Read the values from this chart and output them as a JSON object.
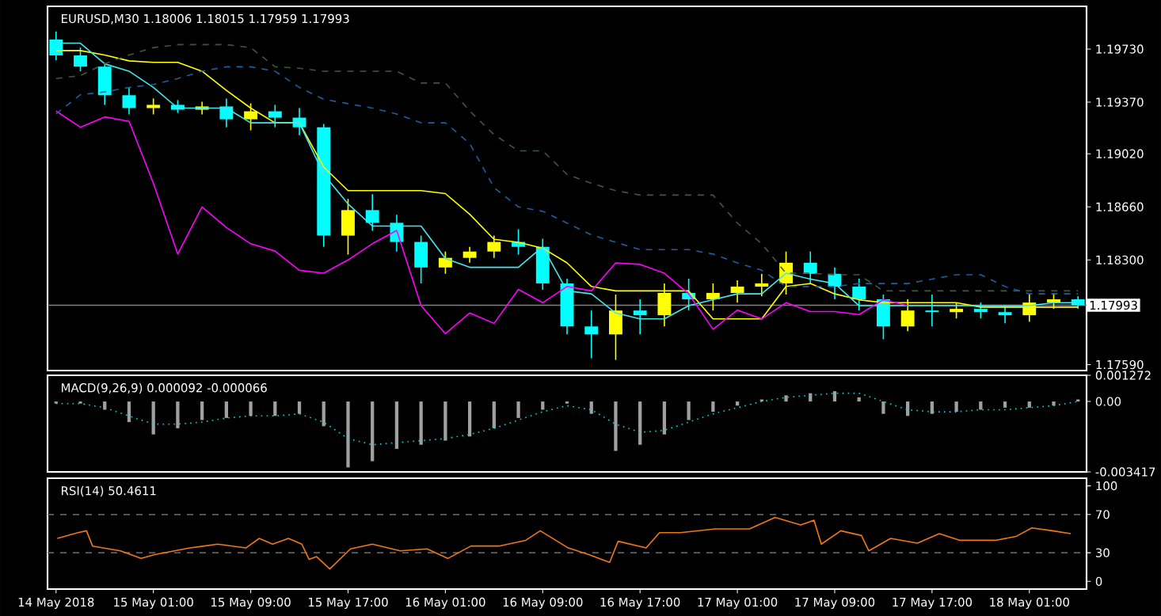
{
  "chart_data": [
    {
      "type": "candlestick",
      "title": "EURUSD,M30 1.18006 1.18015 1.17959 1.17993",
      "x": [
        "2018-05-14T17:00",
        "2018-05-14T19:00",
        "2018-05-14T21:00",
        "2018-05-14T23:00",
        "2018-05-15T01:00",
        "2018-05-15T03:00",
        "2018-05-15T05:00",
        "2018-05-15T07:00",
        "2018-05-15T09:00",
        "2018-05-15T11:00",
        "2018-05-15T13:00",
        "2018-05-15T15:00",
        "2018-05-15T17:00",
        "2018-05-15T19:00",
        "2018-05-15T21:00",
        "2018-05-15T23:00",
        "2018-05-16T01:00",
        "2018-05-16T03:00",
        "2018-05-16T05:00",
        "2018-05-16T07:00",
        "2018-05-16T09:00",
        "2018-05-16T11:00",
        "2018-05-16T13:00",
        "2018-05-16T15:00",
        "2018-05-16T17:00",
        "2018-05-16T19:00",
        "2018-05-16T21:00",
        "2018-05-16T23:00",
        "2018-05-17T01:00",
        "2018-05-17T03:00",
        "2018-05-17T05:00",
        "2018-05-17T07:00",
        "2018-05-17T09:00",
        "2018-05-17T11:00",
        "2018-05-17T13:00",
        "2018-05-17T15:00",
        "2018-05-17T17:00",
        "2018-05-17T19:00",
        "2018-05-17T21:00",
        "2018-05-17T23:00",
        "2018-05-18T01:00",
        "2018-05-18T03:00",
        "2018-05-18T05:00"
      ],
      "ohlc": [
        [
          1.19795,
          1.19849,
          1.19654,
          1.19687
        ],
        [
          1.19687,
          1.19741,
          1.19579,
          1.19611
        ],
        [
          1.19611,
          1.19633,
          1.19352,
          1.19417
        ],
        [
          1.19417,
          1.1947,
          1.19287,
          1.1933
        ],
        [
          1.1933,
          1.19395,
          1.19287,
          1.19352
        ],
        [
          1.19352,
          1.19384,
          1.19297,
          1.19319
        ],
        [
          1.19319,
          1.19373,
          1.19287,
          1.19341
        ],
        [
          1.19341,
          1.19395,
          1.192,
          1.19254
        ],
        [
          1.19254,
          1.19362,
          1.19179,
          1.19308
        ],
        [
          1.19308,
          1.19352,
          1.192,
          1.19265
        ],
        [
          1.19265,
          1.1933,
          1.19146,
          1.192
        ],
        [
          1.192,
          1.19222,
          1.18389,
          1.18465
        ],
        [
          1.18465,
          1.18714,
          1.18336,
          1.18638
        ],
        [
          1.18638,
          1.18746,
          1.18498,
          1.18552
        ],
        [
          1.18552,
          1.18606,
          1.18357,
          1.18422
        ],
        [
          1.18422,
          1.18465,
          1.18141,
          1.18249
        ],
        [
          1.18249,
          1.18357,
          1.18206,
          1.18314
        ],
        [
          1.18314,
          1.18389,
          1.18281,
          1.18357
        ],
        [
          1.18357,
          1.18465,
          1.18314,
          1.18422
        ],
        [
          1.18422,
          1.18508,
          1.18336,
          1.18389
        ],
        [
          1.18389,
          1.18444,
          1.18098,
          1.18141
        ],
        [
          1.18141,
          1.18173,
          1.17795,
          1.17849
        ],
        [
          1.17849,
          1.17957,
          1.17633,
          1.17795
        ],
        [
          1.17795,
          1.18065,
          1.17622,
          1.17957
        ],
        [
          1.17957,
          1.18033,
          1.17795,
          1.17925
        ],
        [
          1.17925,
          1.18141,
          1.17849,
          1.18076
        ],
        [
          1.18076,
          1.18173,
          1.17957,
          1.18033
        ],
        [
          1.18033,
          1.18141,
          1.17957,
          1.18076
        ],
        [
          1.18076,
          1.18162,
          1.18011,
          1.18119
        ],
        [
          1.18119,
          1.18206,
          1.18054,
          1.18141
        ],
        [
          1.18141,
          1.18357,
          1.18065,
          1.18281
        ],
        [
          1.18281,
          1.18357,
          1.18141,
          1.18206
        ],
        [
          1.18206,
          1.18249,
          1.18033,
          1.18119
        ],
        [
          1.18119,
          1.18173,
          1.17957,
          1.18033
        ],
        [
          1.18033,
          1.18065,
          1.17762,
          1.17849
        ],
        [
          1.17849,
          1.18033,
          1.17817,
          1.17957
        ],
        [
          1.17957,
          1.18065,
          1.17849,
          1.17946
        ],
        [
          1.17946,
          1.18011,
          1.17903,
          1.17968
        ],
        [
          1.17968,
          1.18011,
          1.17903,
          1.17946
        ],
        [
          1.17946,
          1.17989,
          1.17871,
          1.17925
        ],
        [
          1.17925,
          1.18065,
          1.17881,
          1.18011
        ],
        [
          1.18011,
          1.18076,
          1.17968,
          1.18033
        ],
        [
          1.18033,
          1.18054,
          1.17968,
          1.17993
        ]
      ],
      "colors": [
        "#00ffff",
        "#00ffff",
        "#00ffff",
        "#00ffff",
        "#ffff00",
        "#00ffff",
        "#ffff00",
        "#00ffff",
        "#ffff00",
        "#00ffff",
        "#00ffff",
        "#00ffff",
        "#ffff00",
        "#00ffff",
        "#00ffff",
        "#00ffff",
        "#ffff00",
        "#ffff00",
        "#ffff00",
        "#00ffff",
        "#00ffff",
        "#00ffff",
        "#00ffff",
        "#ffff00",
        "#00ffff",
        "#ffff00",
        "#00ffff",
        "#ffff00",
        "#ffff00",
        "#ffff00",
        "#ffff00",
        "#00ffff",
        "#00ffff",
        "#00ffff",
        "#00ffff",
        "#ffff00",
        "#00ffff",
        "#ffff00",
        "#00ffff",
        "#00ffff",
        "#ffff00",
        "#ffff00",
        "#00ffff"
      ],
      "series": [
        {
          "type": "line",
          "color": "#ffff00",
          "line_style": "solid",
          "values": [
            1.1972,
            1.1972,
            1.1969,
            1.1965,
            1.1964,
            1.1964,
            1.1958,
            1.1945,
            1.1933,
            1.1923,
            1.1923,
            1.1893,
            1.1877,
            1.1877,
            1.1877,
            1.1877,
            1.1875,
            1.1861,
            1.1844,
            1.1842,
            1.1838,
            1.1828,
            1.1812,
            1.1809,
            1.1809,
            1.1809,
            1.1809,
            1.179,
            1.179,
            1.179,
            1.1812,
            1.1814,
            1.1807,
            1.1803,
            1.1801,
            1.1801,
            1.1801,
            1.1801,
            1.1798,
            1.1798,
            1.1798,
            1.1798,
            1.1798
          ]
        },
        {
          "type": "line",
          "color": "#40e8f0",
          "line_style": "solid",
          "values": [
            1.1977,
            1.1977,
            1.1963,
            1.1958,
            1.1947,
            1.1933,
            1.1933,
            1.1933,
            1.1923,
            1.1923,
            1.1923,
            1.1888,
            1.1868,
            1.1853,
            1.1853,
            1.1853,
            1.1831,
            1.1825,
            1.1825,
            1.1825,
            1.1839,
            1.1809,
            1.1807,
            1.1794,
            1.179,
            1.179,
            1.1799,
            1.1803,
            1.1807,
            1.1807,
            1.1821,
            1.1817,
            1.1814,
            1.1799,
            1.1799,
            1.1799,
            1.1799,
            1.1799,
            1.1799,
            1.1799,
            1.1799,
            1.1801,
            1.1801
          ]
        },
        {
          "type": "line",
          "color": "#ff00ff",
          "line_style": "solid",
          "x": [
            "2018-05-14T17:00",
            "2018-05-14T19:00",
            "2018-05-14T21:00",
            "2018-05-14T23:00",
            "2018-05-15T01:00",
            "2018-05-15T03:00",
            "2018-05-15T05:00",
            "2018-05-15T07:00",
            "2018-05-15T09:00",
            "2018-05-15T11:00",
            "2018-05-15T13:00",
            "2018-05-15T15:00",
            "2018-05-15T17:00",
            "2018-05-15T19:00",
            "2018-05-15T21:00",
            "2018-05-15T23:00",
            "2018-05-16T01:00",
            "2018-05-16T03:00",
            "2018-05-16T05:00",
            "2018-05-16T07:00",
            "2018-05-16T09:00",
            "2018-05-16T11:00",
            "2018-05-16T13:00",
            "2018-05-16T15:00",
            "2018-05-16T17:00",
            "2018-05-16T19:00",
            "2018-05-16T21:00",
            "2018-05-16T23:00",
            "2018-05-17T01:00",
            "2018-05-17T03:00",
            "2018-05-17T05:00",
            "2018-05-17T07:00",
            "2018-05-17T09:00",
            "2018-05-17T11:00",
            "2018-05-17T13:00",
            "2018-05-17T15:00"
          ],
          "values": [
            1.1931,
            1.192,
            1.1927,
            1.1924,
            1.1882,
            1.1834,
            1.1866,
            1.1852,
            1.1841,
            1.1836,
            1.1823,
            1.1821,
            1.183,
            1.1841,
            1.185,
            1.1799,
            1.178,
            1.1794,
            1.1787,
            1.181,
            1.1801,
            1.1812,
            1.1809,
            1.1828,
            1.1827,
            1.1821,
            1.1807,
            1.1783,
            1.1796,
            1.179,
            1.1801,
            1.1795,
            1.1795,
            1.1793,
            1.1803,
            1.1799
          ]
        },
        {
          "type": "line",
          "color": "#3c5a3c",
          "line_style": "dashed",
          "values": [
            1.1953,
            1.1955,
            1.1963,
            1.1969,
            1.1974,
            1.1976,
            1.1976,
            1.1976,
            1.1974,
            1.1961,
            1.196,
            1.1958,
            1.1958,
            1.1958,
            1.1958,
            1.195,
            1.195,
            1.1931,
            1.1915,
            1.1904,
            1.1904,
            1.1888,
            1.1882,
            1.1877,
            1.1874,
            1.1874,
            1.1874,
            1.1874,
            1.1855,
            1.1841,
            1.1821,
            1.1821,
            1.182,
            1.182,
            1.1809,
            1.1809,
            1.1809,
            1.1809,
            1.1809,
            1.1809,
            1.1809,
            1.1809,
            1.1809
          ]
        },
        {
          "type": "line",
          "color": "#1e5fa0",
          "line_style": "dashed",
          "values": [
            1.1929,
            1.1942,
            1.1944,
            1.1947,
            1.1949,
            1.1953,
            1.1958,
            1.1961,
            1.1961,
            1.1958,
            1.1947,
            1.1939,
            1.1936,
            1.1933,
            1.1929,
            1.1923,
            1.1923,
            1.1909,
            1.1879,
            1.1866,
            1.1863,
            1.1855,
            1.1847,
            1.1842,
            1.1837,
            1.1837,
            1.1837,
            1.1834,
            1.1828,
            1.1823,
            1.1812,
            1.1812,
            1.1812,
            1.1814,
            1.1814,
            1.1814,
            1.1817,
            1.182,
            1.182,
            1.1812,
            1.1807,
            1.1807,
            1.1807
          ]
        }
      ],
      "xlim": [
        "2018-05-14T16:18",
        "2018-05-18T05:42"
      ],
      "ylim": [
        1.1755,
        1.2002
      ],
      "yticks": [
        {
          "value": 1.1759,
          "label": "1.17590"
        },
        {
          "value": 1.183,
          "label": "1.18300"
        },
        {
          "value": 1.1866,
          "label": "1.18660"
        },
        {
          "value": 1.1902,
          "label": "1.19020"
        },
        {
          "value": 1.1937,
          "label": "1.19370"
        },
        {
          "value": 1.1973,
          "label": "1.19730"
        }
      ],
      "tick_labels": "y",
      "ref_lines": [
        {
          "axis": "y",
          "value": 1.17993,
          "label": "1.17993",
          "color": "#808080",
          "line_style": "solid"
        }
      ]
    },
    {
      "type": "bar",
      "title": "MACD(9,26,9) 0.000092 -0.000066",
      "x": [
        "2018-05-14T17:00",
        "2018-05-14T19:00",
        "2018-05-14T21:00",
        "2018-05-14T23:00",
        "2018-05-15T01:00",
        "2018-05-15T03:00",
        "2018-05-15T05:00",
        "2018-05-15T07:00",
        "2018-05-15T09:00",
        "2018-05-15T11:00",
        "2018-05-15T13:00",
        "2018-05-15T15:00",
        "2018-05-15T17:00",
        "2018-05-15T19:00",
        "2018-05-15T21:00",
        "2018-05-15T23:00",
        "2018-05-16T01:00",
        "2018-05-16T03:00",
        "2018-05-16T05:00",
        "2018-05-16T07:00",
        "2018-05-16T09:00",
        "2018-05-16T11:00",
        "2018-05-16T13:00",
        "2018-05-16T15:00",
        "2018-05-16T17:00",
        "2018-05-16T19:00",
        "2018-05-16T21:00",
        "2018-05-16T23:00",
        "2018-05-17T01:00",
        "2018-05-17T03:00",
        "2018-05-17T05:00",
        "2018-05-17T07:00",
        "2018-05-17T09:00",
        "2018-05-17T11:00",
        "2018-05-17T13:00",
        "2018-05-17T15:00",
        "2018-05-17T17:00",
        "2018-05-17T19:00",
        "2018-05-17T21:00",
        "2018-05-17T23:00",
        "2018-05-18T01:00",
        "2018-05-18T03:00",
        "2018-05-18T05:00"
      ],
      "series": [
        {
          "color": "#a0a0a0",
          "values": [
            -0.0001,
            -0.0001,
            -0.0004,
            -0.001,
            -0.0016,
            -0.0013,
            -0.0009,
            -0.0008,
            -0.0007,
            -0.0007,
            -0.0006,
            -0.0012,
            -0.0032,
            -0.0029,
            -0.0023,
            -0.0021,
            -0.0019,
            -0.0017,
            -0.0013,
            -0.0008,
            -0.0004,
            -0.0001,
            -0.0006,
            -0.0024,
            -0.0021,
            -0.0016,
            -0.0009,
            -0.0005,
            -0.0002,
            0.0001,
            0.0003,
            0.0004,
            0.0005,
            0.0002,
            -0.0006,
            -0.0007,
            -0.0006,
            -0.0005,
            -0.0004,
            -0.0003,
            -0.0003,
            -0.0002,
            0.0001
          ]
        },
        {
          "type": "line",
          "color": "#00d8e0",
          "line_style": "dotted",
          "values": [
            -0.0001,
            -0.0001,
            -0.0003,
            -0.0007,
            -0.0011,
            -0.0011,
            -0.001,
            -0.0008,
            -0.0007,
            -0.0007,
            -0.0006,
            -0.001,
            -0.0018,
            -0.0021,
            -0.002,
            -0.0019,
            -0.0018,
            -0.0016,
            -0.0013,
            -0.0009,
            -0.0005,
            -0.0002,
            -0.0004,
            -0.0011,
            -0.0015,
            -0.0014,
            -0.001,
            -0.0006,
            -0.0003,
            0.0,
            0.0002,
            0.0003,
            0.0004,
            0.0004,
            0.0,
            -0.0004,
            -0.0005,
            -0.0005,
            -0.0004,
            -0.0004,
            -0.0003,
            -0.0002,
            0.0
          ]
        }
      ],
      "xlim": [
        "2018-05-14T16:18",
        "2018-05-18T05:42"
      ],
      "ylim": [
        -0.003417,
        0.001272
      ],
      "yticks": [
        {
          "value": 0.001272,
          "label": "0.001272"
        },
        {
          "value": 0,
          "label": "0.00"
        },
        {
          "value": -0.003417,
          "label": "-0.003417"
        }
      ],
      "tick_labels": "y"
    },
    {
      "type": "line",
      "title": "RSI(14) 50.4611",
      "color": "#f07818",
      "x": [
        "2018-05-14T17:06",
        "2018-05-14T18:48",
        "2018-05-14T19:30",
        "2018-05-14T20:00",
        "2018-05-14T22:18",
        "2018-05-15T00:00",
        "2018-05-15T01:06",
        "2018-05-15T04:00",
        "2018-05-15T06:18",
        "2018-05-15T08:36",
        "2018-05-15T09:42",
        "2018-05-15T10:48",
        "2018-05-15T12:06",
        "2018-05-15T13:12",
        "2018-05-15T13:48",
        "2018-05-15T14:24",
        "2018-05-15T15:30",
        "2018-05-15T17:12",
        "2018-05-15T19:00",
        "2018-05-15T21:18",
        "2018-05-15T23:30",
        "2018-05-16T01:12",
        "2018-05-16T03:06",
        "2018-05-16T05:24",
        "2018-05-16T07:36",
        "2018-05-16T08:48",
        "2018-05-16T11:06",
        "2018-05-16T12:48",
        "2018-05-16T14:30",
        "2018-05-16T15:12",
        "2018-05-16T17:30",
        "2018-05-16T18:36",
        "2018-05-16T20:18",
        "2018-05-16T23:12",
        "2018-05-17T02:00",
        "2018-05-17T04:06",
        "2018-05-17T06:12",
        "2018-05-17T07:18",
        "2018-05-17T07:54",
        "2018-05-17T09:30",
        "2018-05-17T11:12",
        "2018-05-17T11:48",
        "2018-05-17T13:36",
        "2018-05-17T15:48",
        "2018-05-17T17:36",
        "2018-05-17T19:18",
        "2018-05-17T22:12",
        "2018-05-17T23:54",
        "2018-05-18T01:12",
        "2018-05-18T02:54",
        "2018-05-18T04:24"
      ],
      "values": [
        45,
        51,
        53,
        37,
        32,
        24,
        28,
        35,
        39,
        35,
        45,
        39,
        45,
        39,
        23,
        26,
        13,
        34,
        39,
        32,
        34,
        24,
        37,
        37,
        43,
        53,
        35,
        28,
        20,
        42,
        35,
        51,
        51,
        55,
        55,
        67,
        59,
        64,
        39,
        53,
        48,
        32,
        45,
        40,
        50,
        43,
        43,
        47,
        56,
        53,
        50
      ],
      "xlim": [
        "2018-05-14T16:18",
        "2018-05-18T05:42"
      ],
      "ylim": [
        -8,
        108
      ],
      "yticks": [
        0,
        30,
        70,
        100
      ],
      "xticks": [
        {
          "value": "2018-05-14T17:00",
          "label": "14 May 2018"
        },
        {
          "value": "2018-05-15T01:00",
          "label": "15 May 01:00"
        },
        {
          "value": "2018-05-15T09:00",
          "label": "15 May 09:00"
        },
        {
          "value": "2018-05-15T17:00",
          "label": "15 May 17:00"
        },
        {
          "value": "2018-05-16T01:00",
          "label": "16 May 01:00"
        },
        {
          "value": "2018-05-16T09:00",
          "label": "16 May 09:00"
        },
        {
          "value": "2018-05-16T17:00",
          "label": "16 May 17:00"
        },
        {
          "value": "2018-05-17T01:00",
          "label": "17 May 01:00"
        },
        {
          "value": "2018-05-17T09:00",
          "label": "17 May 09:00"
        },
        {
          "value": "2018-05-17T17:00",
          "label": "17 May 17:00"
        },
        {
          "value": "2018-05-18T01:00",
          "label": "18 May 01:00"
        }
      ],
      "ref_lines": [
        {
          "axis": "y",
          "value": 70,
          "color": "#606060",
          "line_style": "dashed"
        },
        {
          "axis": "y",
          "value": 30,
          "color": "#606060",
          "line_style": "dashed"
        }
      ]
    }
  ]
}
